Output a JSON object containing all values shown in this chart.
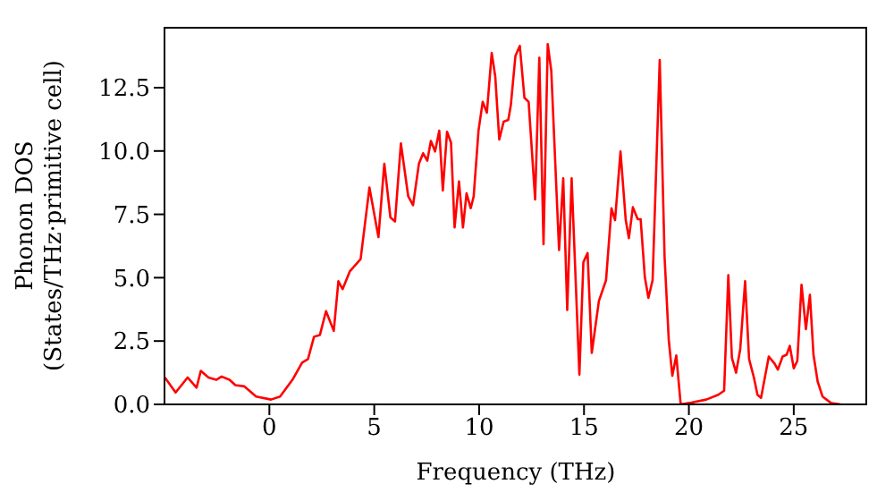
{
  "chart_data": {
    "type": "line",
    "xlabel": "Frequency (THz)",
    "ylabel": "Phonon DOS\n(States/THz·primitive cell)",
    "xlim": [
      -5.0,
      28.5
    ],
    "ylim": [
      0,
      14.9
    ],
    "xticks": [
      0,
      5,
      10,
      15,
      20,
      25
    ],
    "yticks": [
      {
        "value": 0,
        "label": "0.0"
      },
      {
        "value": 2.5,
        "label": "2.5"
      },
      {
        "value": 5,
        "label": "5.0"
      },
      {
        "value": 7.5,
        "label": "7.5"
      },
      {
        "value": 10,
        "label": "10.0"
      },
      {
        "value": 12.5,
        "label": "12.5"
      }
    ],
    "series": [
      {
        "color": "#ff0000",
        "x": [
          -4.98,
          -4.47,
          -3.9,
          -3.47,
          -3.27,
          -2.9,
          -2.53,
          -2.28,
          -1.9,
          -1.62,
          -1.19,
          -0.63,
          0.08,
          0.51,
          1.13,
          1.56,
          1.84,
          2.13,
          2.41,
          2.7,
          3.07,
          3.29,
          3.49,
          3.84,
          4.35,
          4.77,
          5.2,
          5.48,
          5.77,
          5.99,
          6.27,
          6.62,
          6.85,
          7.13,
          7.33,
          7.53,
          7.7,
          7.9,
          8.1,
          8.27,
          8.47,
          8.66,
          8.83,
          9.04,
          9.23,
          9.4,
          9.6,
          9.74,
          9.97,
          10.17,
          10.37,
          10.6,
          10.77,
          10.96,
          11.17,
          11.39,
          11.51,
          11.73,
          11.94,
          12.16,
          12.36,
          12.67,
          12.87,
          13.07,
          13.27,
          13.44,
          13.81,
          14.01,
          14.2,
          14.41,
          14.78,
          14.97,
          15.17,
          15.37,
          15.71,
          16.05,
          16.31,
          16.48,
          16.74,
          16.99,
          17.14,
          17.33,
          17.56,
          17.7,
          17.9,
          18.07,
          18.27,
          18.61,
          18.84,
          19.04,
          19.21,
          19.4,
          19.61,
          20.12,
          20.83,
          21.4,
          21.68,
          21.88,
          22.05,
          22.25,
          22.45,
          22.68,
          22.87,
          23.1,
          23.27,
          23.44,
          23.81,
          24.09,
          24.24,
          24.47,
          24.66,
          24.81,
          25.0,
          25.17,
          25.37,
          25.58,
          25.77,
          25.94,
          26.14,
          26.37,
          26.79,
          27.22
        ],
        "values": [
          1.06,
          0.47,
          1.06,
          0.66,
          1.32,
          1.06,
          0.97,
          1.1,
          0.97,
          0.76,
          0.71,
          0.31,
          0.19,
          0.31,
          1.01,
          1.65,
          1.79,
          2.67,
          2.74,
          3.68,
          2.9,
          4.86,
          4.55,
          5.26,
          5.73,
          8.56,
          6.6,
          9.5,
          7.38,
          7.22,
          10.3,
          8.21,
          7.86,
          9.5,
          9.91,
          9.62,
          10.4,
          9.98,
          10.8,
          8.44,
          10.76,
          10.33,
          6.98,
          8.8,
          6.98,
          8.33,
          7.74,
          8.21,
          10.8,
          11.94,
          11.51,
          13.87,
          12.93,
          10.45,
          11.16,
          11.23,
          11.8,
          13.75,
          14.15,
          12.1,
          11.94,
          8.09,
          13.68,
          6.32,
          14.22,
          13.16,
          6.09,
          8.92,
          3.73,
          8.92,
          1.18,
          5.61,
          5.97,
          2.03,
          4.08,
          4.9,
          7.74,
          7.27,
          9.98,
          7.27,
          6.56,
          7.78,
          7.31,
          7.31,
          5.02,
          4.2,
          4.9,
          13.59,
          5.85,
          2.55,
          1.13,
          1.93,
          0,
          0.07,
          0.19,
          0.38,
          0.54,
          5.1,
          1.84,
          1.25,
          2.19,
          4.86,
          1.79,
          1.06,
          0.38,
          0.26,
          1.89,
          1.6,
          1.37,
          1.89,
          1.96,
          2.31,
          1.42,
          1.72,
          4.72,
          2.97,
          4.32,
          1.96,
          0.9,
          0.31,
          0.05,
          0
        ]
      }
    ]
  }
}
